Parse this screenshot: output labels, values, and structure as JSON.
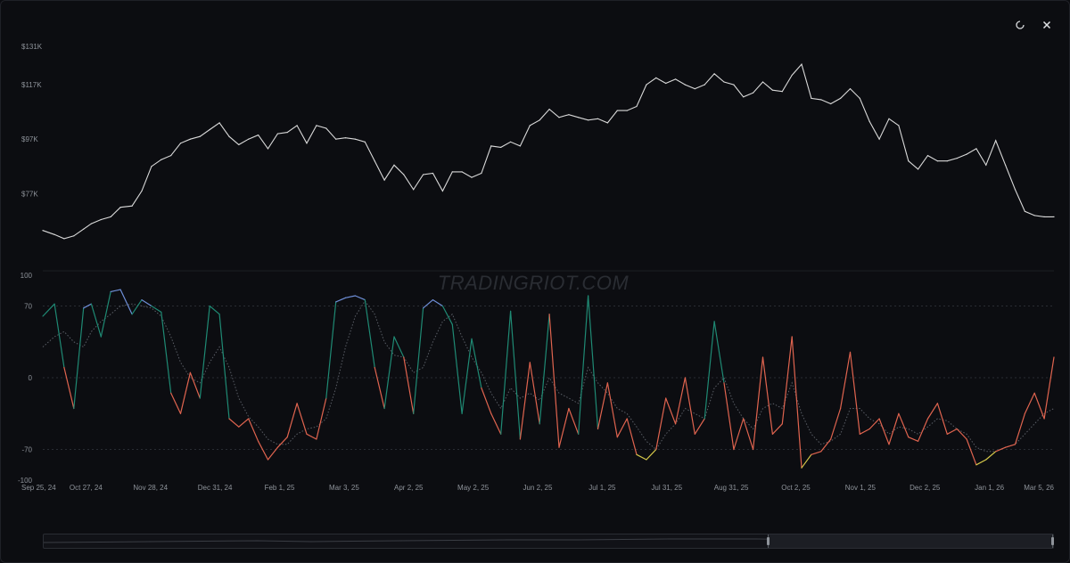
{
  "toolbar": {
    "refresh_icon": "refresh-icon",
    "close_icon": "close-icon"
  },
  "watermark": "TRADINGRIOT.COM",
  "colors": {
    "background": "#0c0d11",
    "price_line": "#d9d9d9",
    "oscillator_overbought": "#6f8fd8",
    "oscillator_bullish": "#1f8a74",
    "oscillator_bearish": "#e0644f",
    "oscillator_oversold": "#d6c94a",
    "signal_line": "#5a5e66",
    "grid": "#2a2d33"
  },
  "chart_data": [
    {
      "type": "line",
      "name": "price",
      "ylim": [
        50000,
        135000
      ],
      "y_ticks": [
        "$131K",
        "$117K",
        "$97K",
        "$77K"
      ],
      "y_tick_values": [
        131000,
        117000,
        97000,
        77000
      ],
      "x_ticks": [
        "Sep 25, 24",
        "Oct 27, 24",
        "Nov 28, 24",
        "Dec 31, 24",
        "Feb 1, 25",
        "Mar 3, 25",
        "Apr 2, 25",
        "May 2, 25",
        "Jun 2, 25",
        "Jul 1, 25",
        "Jul 31, 25",
        "Aug 31, 25",
        "Oct 2, 25",
        "Nov 1, 25",
        "Dec 2, 25",
        "Jan 1, 26",
        "Mar 5, 26"
      ],
      "x": [
        0,
        6,
        11,
        16,
        21,
        25,
        30,
        35,
        40,
        46,
        51,
        56,
        61,
        66,
        71,
        76,
        81,
        86,
        91,
        96,
        101,
        106,
        111,
        116,
        121,
        126,
        131,
        136,
        141,
        146,
        151,
        156,
        161,
        166,
        171,
        176,
        181,
        186,
        191,
        196,
        201,
        206,
        211,
        216,
        221,
        226,
        231,
        236,
        241,
        246,
        251,
        256,
        261,
        266,
        271,
        276,
        281,
        286,
        291,
        296,
        301,
        306,
        311,
        316,
        321,
        326,
        331,
        336,
        341,
        346,
        351,
        356,
        361,
        366,
        371,
        376,
        381,
        386,
        391,
        396,
        401,
        406,
        411,
        416,
        421,
        426,
        431,
        436,
        441,
        446,
        451,
        456,
        461,
        466,
        471,
        476,
        481,
        486,
        491,
        496,
        501,
        506,
        511,
        516,
        521
      ],
      "values": [
        63500,
        62000,
        60500,
        61500,
        64000,
        66000,
        67500,
        68500,
        72000,
        72500,
        78000,
        87000,
        89500,
        91000,
        95500,
        97000,
        98000,
        100500,
        103000,
        98000,
        95000,
        97000,
        98500,
        93500,
        99000,
        99500,
        102000,
        95500,
        102000,
        101000,
        97000,
        97500,
        97000,
        96000,
        89000,
        82000,
        87500,
        84000,
        78500,
        84000,
        84500,
        78000,
        85000,
        85000,
        83000,
        84500,
        94500,
        94000,
        96000,
        94500,
        102000,
        104000,
        108000,
        105000,
        106000,
        105000,
        104000,
        104500,
        103000,
        107500,
        107500,
        109000,
        117000,
        119500,
        117500,
        119000,
        117000,
        115500,
        117000,
        121000,
        118000,
        117000,
        112500,
        114000,
        118000,
        115000,
        114500,
        120500,
        124500,
        112000,
        111500,
        110000,
        112000,
        115500,
        112000,
        103500,
        97000,
        104500,
        102000,
        89000,
        86000,
        91000,
        89000,
        89000,
        90000,
        91500,
        93500,
        87500,
        96500,
        87500,
        78500,
        70500,
        69000,
        68500,
        68500
      ]
    },
    {
      "type": "line",
      "name": "oscillator",
      "ylim": [
        -100,
        100
      ],
      "y_ticks": [
        "100",
        "70",
        "0",
        "-70",
        "-100"
      ],
      "y_tick_values": [
        100,
        70,
        0,
        -70,
        -100
      ],
      "x": [
        0,
        6,
        11,
        16,
        21,
        25,
        30,
        35,
        40,
        46,
        51,
        56,
        61,
        66,
        71,
        76,
        81,
        86,
        91,
        96,
        101,
        106,
        111,
        116,
        121,
        126,
        131,
        136,
        141,
        146,
        151,
        156,
        161,
        166,
        171,
        176,
        181,
        186,
        191,
        196,
        201,
        206,
        211,
        216,
        221,
        226,
        231,
        236,
        241,
        246,
        251,
        256,
        261,
        266,
        271,
        276,
        281,
        286,
        291,
        296,
        301,
        306,
        311,
        316,
        321,
        326,
        331,
        336,
        341,
        346,
        351,
        356,
        361,
        366,
        371,
        376,
        381,
        386,
        391,
        396,
        401,
        406,
        411,
        416,
        421,
        426,
        431,
        436,
        441,
        446,
        451,
        456,
        461,
        466,
        471,
        476,
        481,
        486,
        491,
        496,
        501,
        506,
        511,
        516,
        521
      ],
      "values": [
        60,
        72,
        10,
        -30,
        68,
        72,
        40,
        84,
        86,
        62,
        76,
        70,
        64,
        -15,
        -35,
        5,
        -20,
        70,
        62,
        -40,
        -48,
        -40,
        -62,
        -80,
        -68,
        -58,
        -25,
        -55,
        -60,
        -20,
        74,
        78,
        80,
        76,
        10,
        -30,
        40,
        20,
        -35,
        68,
        76,
        70,
        52,
        -35,
        38,
        -10,
        -35,
        -55,
        65,
        -60,
        15,
        -45,
        62,
        -68,
        -30,
        -55,
        80,
        -50,
        -5,
        -58,
        -40,
        -75,
        -80,
        -70,
        -20,
        -45,
        0,
        -55,
        -40,
        55,
        -5,
        -70,
        -40,
        -70,
        20,
        -55,
        -45,
        40,
        -88,
        -75,
        -72,
        -60,
        -30,
        25,
        -55,
        -50,
        -40,
        -65,
        -35,
        -58,
        -62,
        -40,
        -25,
        -55,
        -50,
        -60,
        -85,
        -80,
        -72,
        -68,
        -65,
        -35,
        -15,
        -40,
        20
      ],
      "signal": [
        30,
        40,
        45,
        35,
        30,
        45,
        55,
        62,
        70,
        72,
        70,
        68,
        60,
        40,
        15,
        0,
        -5,
        15,
        30,
        10,
        -20,
        -38,
        -48,
        -60,
        -65,
        -65,
        -55,
        -50,
        -48,
        -40,
        -10,
        30,
        60,
        75,
        62,
        35,
        22,
        20,
        5,
        10,
        35,
        55,
        62,
        40,
        20,
        5,
        -15,
        -30,
        -10,
        -20,
        -15,
        -22,
        0,
        -15,
        -20,
        -25,
        10,
        -5,
        -15,
        -30,
        -35,
        -48,
        -62,
        -70,
        -55,
        -45,
        -30,
        -35,
        -40,
        -10,
        0,
        -25,
        -40,
        -50,
        -30,
        -25,
        -30,
        -5,
        -35,
        -55,
        -65,
        -62,
        -55,
        -30,
        -30,
        -40,
        -45,
        -55,
        -48,
        -50,
        -55,
        -48,
        -40,
        -42,
        -50,
        -55,
        -68,
        -72,
        -72,
        -68,
        -65,
        -55,
        -45,
        -35,
        -30
      ]
    }
  ],
  "x_range": [
    0,
    521
  ]
}
